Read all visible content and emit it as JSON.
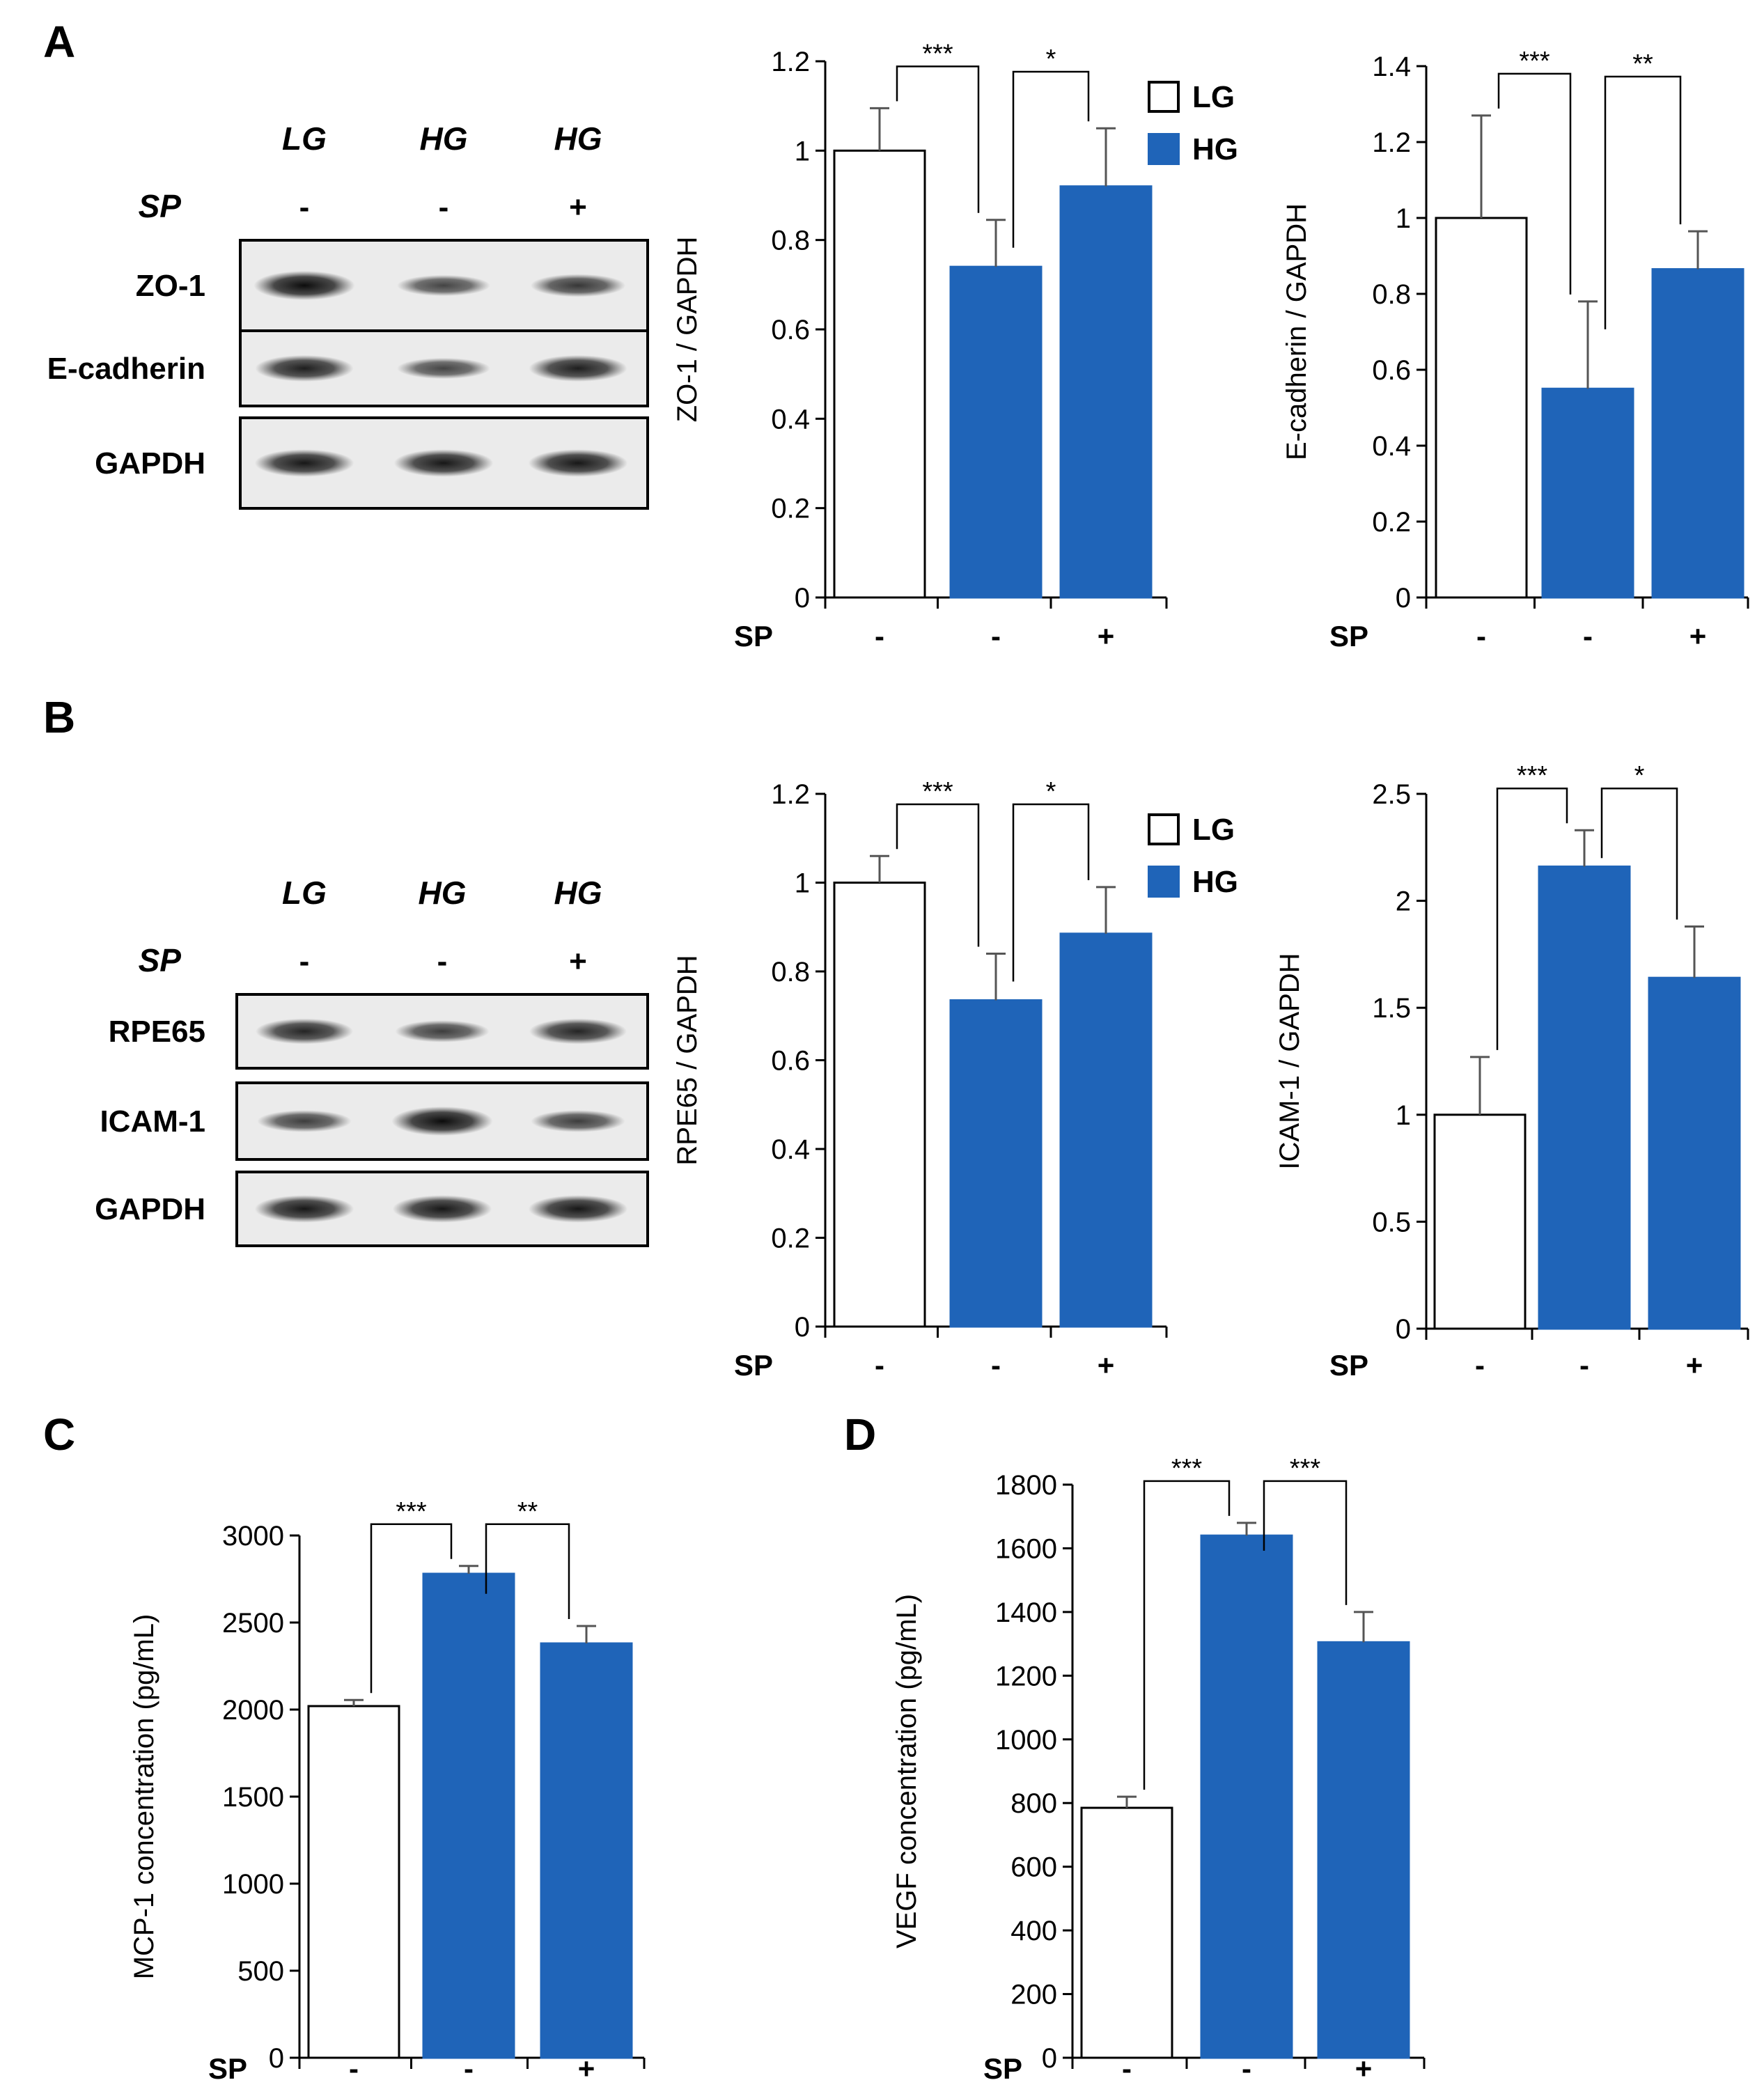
{
  "colors": {
    "hg": "#1f64b8",
    "lg": "#ffffff",
    "axis": "#000000",
    "error": "#555555"
  },
  "panels": [
    {
      "letter": "A"
    },
    {
      "letter": "B"
    },
    {
      "letter": "C"
    },
    {
      "letter": "D"
    }
  ],
  "legend": [
    {
      "label": "LG",
      "color": "#ffffff"
    },
    {
      "label": "HG",
      "color": "#1f64b8"
    }
  ],
  "blots": [
    {
      "panel": "A",
      "conditions": [
        "LG",
        "HG",
        "HG"
      ],
      "sp_label": "SP",
      "sp_values": [
        "-",
        "-",
        "+"
      ],
      "bands": [
        {
          "label": "ZO-1",
          "intensity": [
            1.0,
            0.55,
            0.65
          ]
        },
        {
          "label": "E-cadherin",
          "intensity": [
            0.85,
            0.55,
            0.85
          ]
        },
        {
          "label": "GAPDH",
          "intensity": [
            0.9,
            0.9,
            0.9
          ]
        }
      ]
    },
    {
      "panel": "B",
      "conditions": [
        "LG",
        "HG",
        "HG"
      ],
      "sp_label": "SP",
      "sp_values": [
        "-",
        "-",
        "+"
      ],
      "bands": [
        {
          "label": "RPE65",
          "intensity": [
            0.8,
            0.6,
            0.8
          ]
        },
        {
          "label": "ICAM-1",
          "intensity": [
            0.6,
            1.0,
            0.6
          ]
        },
        {
          "label": "GAPDH",
          "intensity": [
            0.9,
            0.9,
            0.9
          ]
        }
      ]
    }
  ],
  "chart_data": [
    {
      "id": "zo1",
      "type": "bar",
      "ylabel": "ZO-1 / GAPDH",
      "ylim": [
        0,
        1.2
      ],
      "yticks": [
        0,
        0.2,
        0.4,
        0.6,
        0.8,
        1,
        1.2
      ],
      "ytick_labels": [
        "0",
        "0.2",
        "0.4",
        "0.6",
        "0.8",
        "1",
        "1.2"
      ],
      "xlabel": "SP",
      "categories": [
        "-",
        "-",
        "+"
      ],
      "values": [
        1.0,
        0.74,
        0.92
      ],
      "errors": [
        0.095,
        0.105,
        0.13
      ],
      "significance": [
        {
          "from": 0,
          "to": 1,
          "label": "***"
        },
        {
          "from": 1,
          "to": 2,
          "label": "*"
        }
      ],
      "legend": true
    },
    {
      "id": "ecad",
      "type": "bar",
      "ylabel": "E-cadherin / GAPDH",
      "ylim": [
        0,
        1.4
      ],
      "yticks": [
        0,
        0.2,
        0.4,
        0.6,
        0.8,
        1,
        1.2,
        1.4
      ],
      "ytick_labels": [
        "0",
        "0.2",
        "0.4",
        "0.6",
        "0.8",
        "1",
        "1.2",
        "1.4"
      ],
      "xlabel": "SP",
      "categories": [
        "-",
        "-",
        "+"
      ],
      "values": [
        1.0,
        0.55,
        0.865
      ],
      "errors": [
        0.27,
        0.23,
        0.1
      ],
      "significance": [
        {
          "from": 0,
          "to": 1,
          "label": "***"
        },
        {
          "from": 1,
          "to": 2,
          "label": "**"
        }
      ],
      "legend": false
    },
    {
      "id": "rpe65",
      "type": "bar",
      "ylabel": "RPE65 / GAPDH",
      "ylim": [
        0,
        1.2
      ],
      "yticks": [
        0,
        0.2,
        0.4,
        0.6,
        0.8,
        1,
        1.2
      ],
      "ytick_labels": [
        "0",
        "0.2",
        "0.4",
        "0.6",
        "0.8",
        "1",
        "1.2"
      ],
      "xlabel": "SP",
      "categories": [
        "-",
        "-",
        "+"
      ],
      "values": [
        1.0,
        0.735,
        0.885
      ],
      "errors": [
        0.06,
        0.105,
        0.105
      ],
      "significance": [
        {
          "from": 0,
          "to": 1,
          "label": "***"
        },
        {
          "from": 1,
          "to": 2,
          "label": "*"
        }
      ],
      "legend": true
    },
    {
      "id": "icam1",
      "type": "bar",
      "ylabel": "ICAM-1 / GAPDH",
      "ylim": [
        0,
        2.5
      ],
      "yticks": [
        0,
        0.5,
        1,
        1.5,
        2,
        2.5
      ],
      "ytick_labels": [
        "0",
        "0.5",
        "1",
        "1.5",
        "2",
        "2.5"
      ],
      "xlabel": "SP",
      "categories": [
        "-",
        "-",
        "+"
      ],
      "values": [
        1.0,
        2.16,
        1.64
      ],
      "errors": [
        0.27,
        0.17,
        0.24
      ],
      "significance": [
        {
          "from": 0,
          "to": 1,
          "label": "***"
        },
        {
          "from": 1,
          "to": 2,
          "label": "*"
        }
      ],
      "legend": false
    },
    {
      "id": "mcp1",
      "type": "bar",
      "ylabel": "MCP-1 concentration (pg/mL)",
      "ylim": [
        0,
        3000
      ],
      "yticks": [
        0,
        500,
        1000,
        1500,
        2000,
        2500,
        3000
      ],
      "ytick_labels": [
        "0",
        "500",
        "1000",
        "1500",
        "2000",
        "2500",
        "3000"
      ],
      "xlabel": "SP",
      "categories": [
        "-",
        "-",
        "+"
      ],
      "values": [
        2020,
        2780,
        2380
      ],
      "errors": [
        35,
        45,
        100
      ],
      "significance": [
        {
          "from": 0,
          "to": 1,
          "label": "***"
        },
        {
          "from": 1,
          "to": 2,
          "label": "**"
        }
      ],
      "legend": false
    },
    {
      "id": "vegf",
      "type": "bar",
      "ylabel": "VEGF concentration (pg/mL)",
      "ylim": [
        0,
        1800
      ],
      "yticks": [
        0,
        200,
        400,
        600,
        800,
        1000,
        1200,
        1400,
        1600,
        1800
      ],
      "ytick_labels": [
        "0",
        "200",
        "400",
        "600",
        "800",
        "1000",
        "1200",
        "1400",
        "1600",
        "1800"
      ],
      "xlabel": "SP",
      "categories": [
        "-",
        "-",
        "+"
      ],
      "values": [
        785,
        1640,
        1305
      ],
      "errors": [
        35,
        40,
        95
      ],
      "significance": [
        {
          "from": 0,
          "to": 1,
          "label": "***"
        },
        {
          "from": 1,
          "to": 2,
          "label": "***"
        }
      ],
      "legend": false
    }
  ]
}
